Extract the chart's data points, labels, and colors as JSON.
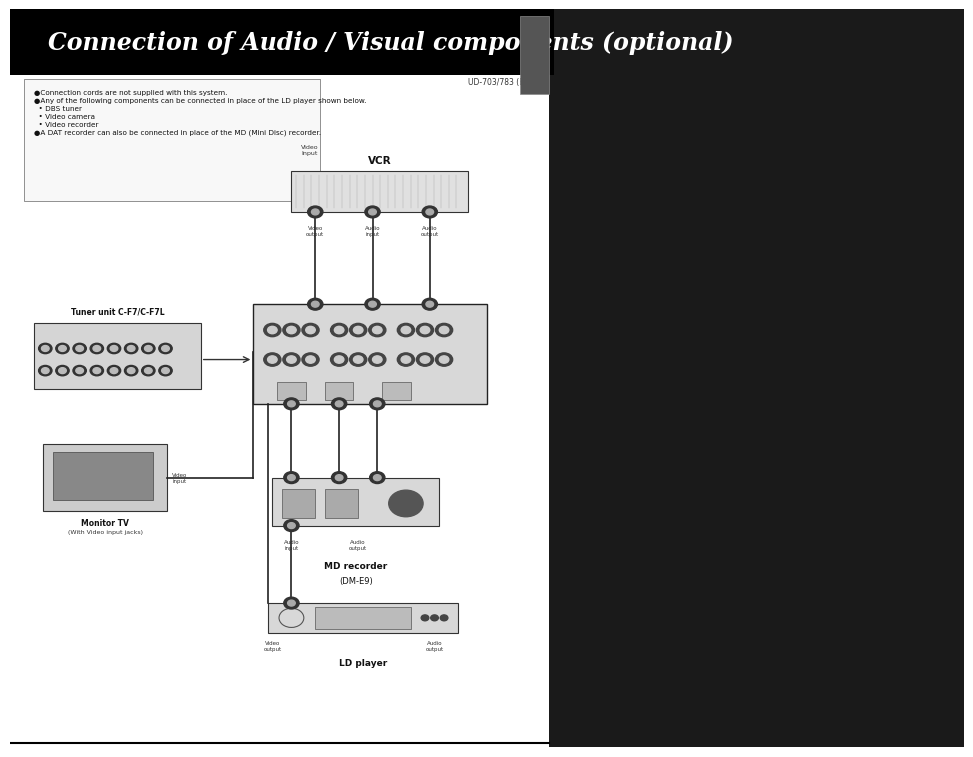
{
  "title": "Connection of Audio / Visual components (optional)",
  "title_color": "#ffffff",
  "title_bg_color": "#000000",
  "page_bg_color": "#ffffff",
  "model_number": "UD-703/783 (Bi)",
  "notes": [
    "●Connection cords are not supplied with this system.",
    "●Any of the following components can be connected in place of the LD player shown below.",
    "  • DBS tuner",
    "  • Video camera",
    "  • Video recorder",
    "●A DAT recorder can also be connected in place of the MD (Mini Disc) recorder."
  ],
  "right_panel_color": "#1a1a1a",
  "border_color": "#000000"
}
